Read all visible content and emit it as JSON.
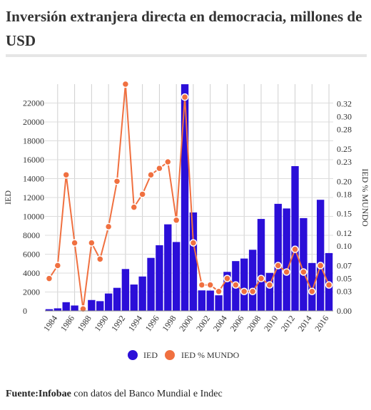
{
  "title": "Inversión extranjera directa en democracia, millones de USD",
  "source": {
    "label": "Fuente:",
    "org": "Infobae",
    "rest": " con datos del Banco Mundial e Indec"
  },
  "chart_data": {
    "type": "bar+line",
    "years": [
      1983,
      1984,
      1985,
      1986,
      1987,
      1988,
      1989,
      1990,
      1991,
      1992,
      1993,
      1994,
      1995,
      1996,
      1997,
      1998,
      1999,
      2000,
      2001,
      2002,
      2003,
      2004,
      2005,
      2006,
      2007,
      2008,
      2009,
      2010,
      2011,
      2012,
      2013,
      2014,
      2015,
      2016
    ],
    "xtick_labels": [
      "1984",
      "1986",
      "1988",
      "1990",
      "1992",
      "1994",
      "1996",
      "1998",
      "2000",
      "2002",
      "2004",
      "2006",
      "2008",
      "2010",
      "2012",
      "2014",
      "2016"
    ],
    "series": [
      {
        "name": "IED",
        "axis": "left",
        "kind": "bar",
        "color": "#2b0fd8",
        "values": [
          180,
          270,
          920,
          570,
          0,
          1150,
          1030,
          1840,
          2440,
          4430,
          2790,
          3640,
          5610,
          6950,
          9160,
          7290,
          23990,
          10420,
          2170,
          2150,
          1650,
          4130,
          5270,
          5540,
          6470,
          9730,
          4020,
          11330,
          10840,
          15320,
          9820,
          5070,
          11760,
          6120
        ]
      },
      {
        "name": "IED % MUNDO",
        "axis": "right",
        "kind": "line",
        "color": "#f07040",
        "values": [
          0.05,
          0.07,
          0.21,
          0.105,
          0.003,
          0.105,
          0.08,
          0.13,
          0.2,
          0.35,
          0.16,
          0.18,
          0.21,
          0.22,
          0.23,
          0.14,
          0.33,
          0.105,
          0.04,
          0.04,
          0.03,
          0.05,
          0.04,
          0.03,
          0.03,
          0.05,
          0.04,
          0.07,
          0.06,
          0.095,
          0.06,
          0.03,
          0.07,
          0.04
        ]
      }
    ],
    "ylabel": "IED",
    "ylabel_right": "IED % MUNDO",
    "yticks_left": [
      0,
      2000,
      4000,
      6000,
      8000,
      10000,
      12000,
      14000,
      16000,
      18000,
      20000,
      22000
    ],
    "yticks_right": [
      "0.00",
      "0.03",
      "0.05",
      "0.07",
      "0.10",
      "0.12",
      "0.15",
      "0.18",
      "0.20",
      "0.23",
      "0.25",
      "0.28",
      "0.30",
      "0.32"
    ],
    "ylim_left": [
      0,
      24000
    ],
    "ylim_right": [
      0,
      0.35
    ],
    "grid": true,
    "legend_position": "bottom-center",
    "legend": [
      "IED",
      "IED % MUNDO"
    ]
  }
}
